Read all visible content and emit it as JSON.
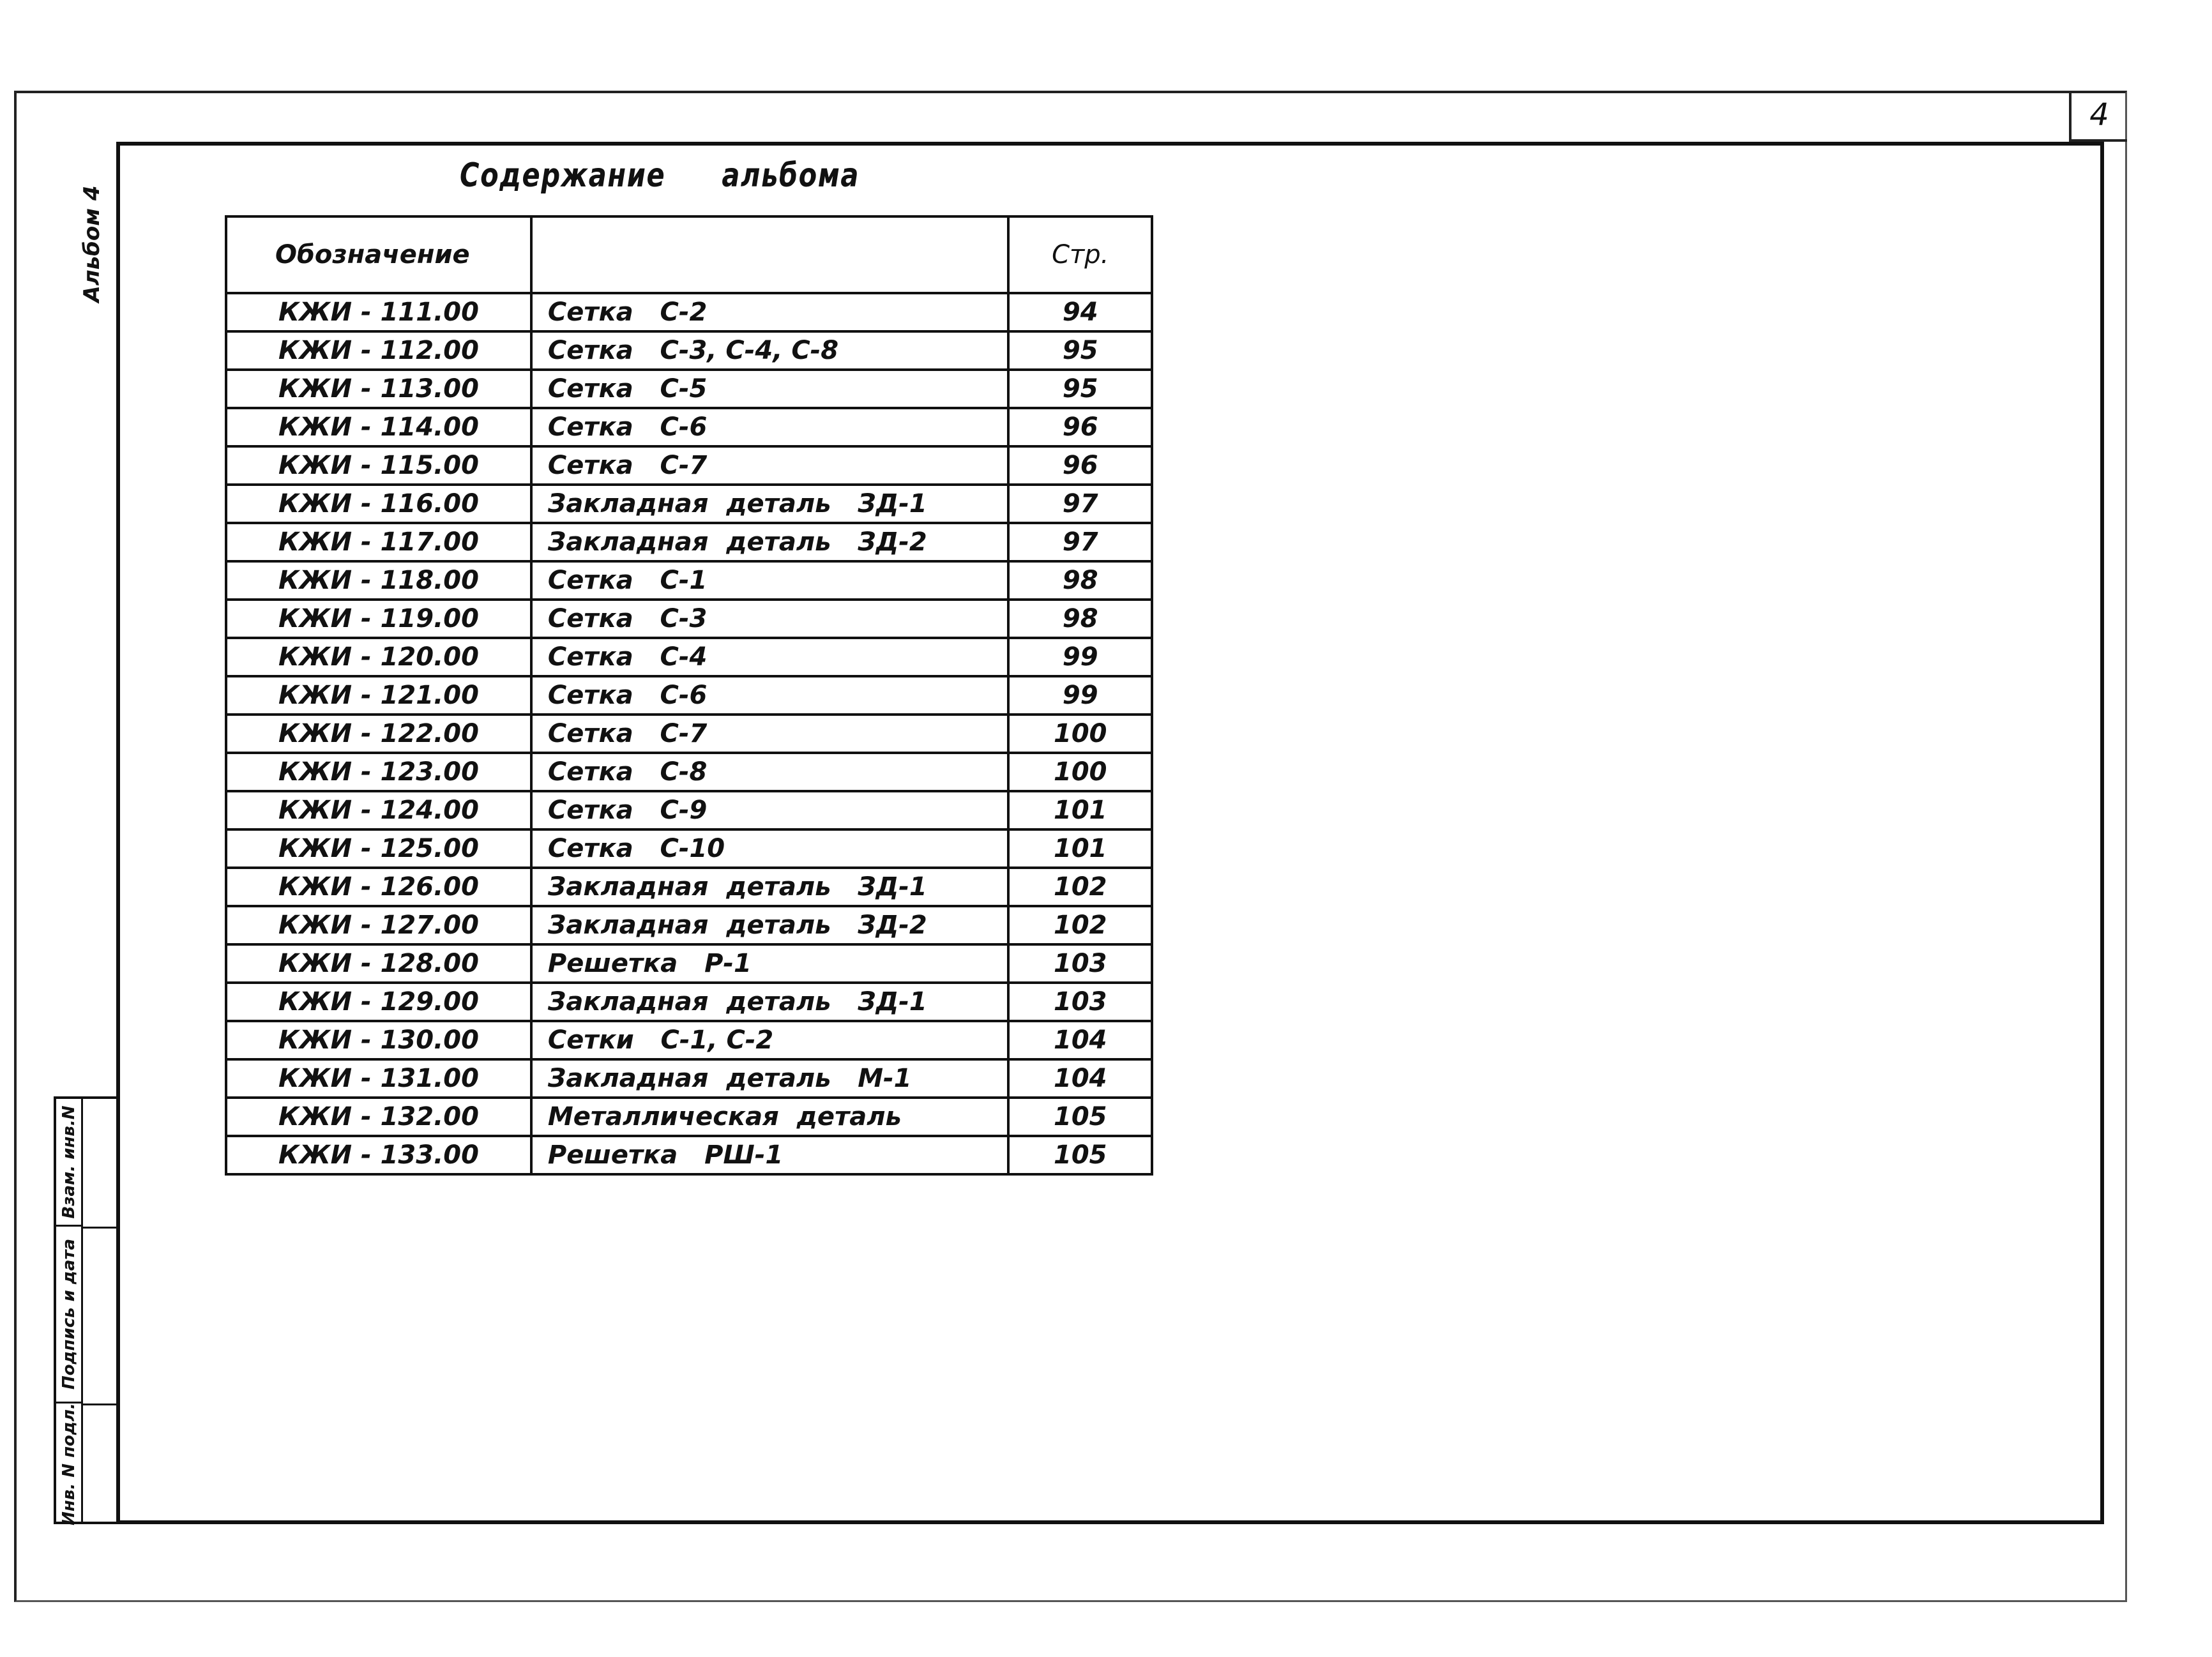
{
  "page_number": "4",
  "album_label": "Альбом 4",
  "title": "Содержание альбома",
  "table": {
    "headers": [
      "Обозначение",
      "",
      "Стр."
    ],
    "rows": [
      [
        "КЖИ - 111.00",
        "Сетка   С-2",
        "94"
      ],
      [
        "КЖИ - 112.00",
        "Сетка   С-3, С-4, С-8",
        "95"
      ],
      [
        "КЖИ - 113.00",
        "Сетка   С-5",
        "95"
      ],
      [
        "КЖИ - 114.00",
        "Сетка   С-6",
        "96"
      ],
      [
        "КЖИ - 115.00",
        "Сетка   С-7",
        "96"
      ],
      [
        "КЖИ - 116.00",
        "Закладная  деталь   ЗД-1",
        "97"
      ],
      [
        "КЖИ - 117.00",
        "Закладная  деталь   ЗД-2",
        "97"
      ],
      [
        "КЖИ - 118.00",
        "Сетка   С-1",
        "98"
      ],
      [
        "КЖИ - 119.00",
        "Сетка   С-3",
        "98"
      ],
      [
        "КЖИ - 120.00",
        "Сетка   С-4",
        "99"
      ],
      [
        "КЖИ - 121.00",
        "Сетка   С-6",
        "99"
      ],
      [
        "КЖИ - 122.00",
        "Сетка   С-7",
        "100"
      ],
      [
        "КЖИ - 123.00",
        "Сетка   С-8",
        "100"
      ],
      [
        "КЖИ - 124.00",
        "Сетка   С-9",
        "101"
      ],
      [
        "КЖИ - 125.00",
        "Сетка   С-10",
        "101"
      ],
      [
        "КЖИ - 126.00",
        "Закладная  деталь   ЗД-1",
        "102"
      ],
      [
        "КЖИ - 127.00",
        "Закладная  деталь   ЗД-2",
        "102"
      ],
      [
        "КЖИ - 128.00",
        "Решетка   Р-1",
        "103"
      ],
      [
        "КЖИ - 129.00",
        "Закладная  деталь   ЗД-1",
        "103"
      ],
      [
        "КЖИ - 130.00",
        "Сетки   С-1, С-2",
        "104"
      ],
      [
        "КЖИ - 131.00",
        "Закладная  деталь   М-1",
        "104"
      ],
      [
        "КЖИ - 132.00",
        "Металлическая  деталь",
        "105"
      ],
      [
        "КЖИ - 133.00",
        "Решетка   РШ-1",
        "105"
      ]
    ]
  },
  "side_stamp": [
    "Взам. инв.N",
    "Подпись и дата",
    "Инв. N подл."
  ]
}
